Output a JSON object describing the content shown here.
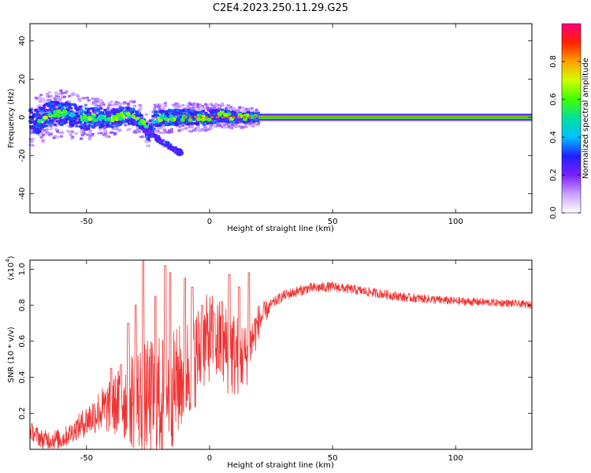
{
  "title": "C2E4.2023.250.11.29.G25",
  "chart_data": [
    {
      "type": "heatmap",
      "xlabel": "Height of straight line (km)",
      "ylabel": "Frequency (Hz)",
      "xlim": [
        -73,
        131
      ],
      "ylim": [
        -50,
        49
      ],
      "xticks": [
        -50,
        0,
        50,
        100
      ],
      "yticks": [
        -40,
        -20,
        0,
        20,
        40
      ],
      "xtick_labels": [
        "-50",
        "0",
        "50",
        "100"
      ],
      "ytick_labels": [
        "-40",
        "-20",
        "0",
        "20",
        "40"
      ],
      "colorbar": {
        "label": "Normalized spectral amplitude",
        "range": [
          0,
          1
        ],
        "ticks": [
          0.0,
          0.2,
          0.4,
          0.6,
          0.8
        ],
        "tick_labels": [
          "0.0",
          "0.2",
          "0.4",
          "0.6",
          "0.8"
        ],
        "colors": [
          "#ffffff",
          "#c8a0ff",
          "#7a20ff",
          "#2020ff",
          "#00c0ff",
          "#00e0a0",
          "#40ff00",
          "#d0ff00",
          "#ffa000",
          "#ff2000",
          "#ff0080"
        ]
      },
      "scatter_band": {
        "x_start": -73,
        "x_end": 20,
        "center_freq": [
          [
            -70,
            -2
          ],
          [
            -65,
            2
          ],
          [
            -60,
            2
          ],
          [
            -55,
            1
          ],
          [
            -50,
            -1
          ],
          [
            -45,
            0
          ],
          [
            -40,
            -1
          ],
          [
            -35,
            1
          ],
          [
            -30,
            0
          ],
          [
            -27,
            -3
          ],
          [
            -25,
            -8
          ],
          [
            -22,
            -1
          ],
          [
            -18,
            0
          ],
          [
            -12,
            0
          ],
          [
            -5,
            0
          ],
          [
            0,
            0
          ],
          [
            5,
            1
          ],
          [
            10,
            0
          ],
          [
            15,
            0
          ],
          [
            20,
            0
          ]
        ],
        "spread_hz": [
          8,
          8,
          6,
          5,
          5,
          4,
          3
        ],
        "offbranch": [
          [
            -28,
            -5
          ],
          [
            -20,
            -12
          ],
          [
            -14,
            -17
          ],
          [
            -11,
            -19
          ]
        ]
      },
      "steady_line": {
        "x_start": 20,
        "x_end": 131,
        "freq": 0,
        "width_hz": 2
      }
    },
    {
      "type": "line",
      "xlabel": "Height of straight line (km)",
      "ylabel": "SNR (10 * v/v)",
      "y_multiplier_label": "(x10",
      "y_multiplier_exp": "4",
      "y_multiplier_close": ")",
      "xlim": [
        -73,
        131
      ],
      "ylim": [
        0,
        1.05
      ],
      "xticks": [
        -50,
        0,
        50,
        100
      ],
      "yticks": [
        0.2,
        0.4,
        0.6,
        0.8,
        1.0
      ],
      "xtick_labels": [
        "-50",
        "0",
        "50",
        "100"
      ],
      "ytick_labels": [
        "0.2",
        "0.4",
        "0.6",
        "0.8",
        "1.0"
      ],
      "color": "#ee3333",
      "series": {
        "name": "SNR",
        "baseline": [
          [
            -73,
            0.1
          ],
          [
            -68,
            0.05
          ],
          [
            -60,
            0.05
          ],
          [
            -55,
            0.1
          ],
          [
            -50,
            0.15
          ],
          [
            -45,
            0.2
          ],
          [
            -40,
            0.22
          ],
          [
            -35,
            0.25
          ],
          [
            -30,
            0.25
          ],
          [
            -25,
            0.25
          ],
          [
            -20,
            0.25
          ],
          [
            -15,
            0.3
          ],
          [
            -10,
            0.4
          ],
          [
            -5,
            0.5
          ],
          [
            0,
            0.6
          ],
          [
            5,
            0.55
          ],
          [
            10,
            0.5
          ],
          [
            15,
            0.5
          ],
          [
            20,
            0.7
          ],
          [
            25,
            0.8
          ],
          [
            30,
            0.85
          ],
          [
            40,
            0.89
          ],
          [
            50,
            0.9
          ],
          [
            60,
            0.88
          ],
          [
            70,
            0.86
          ],
          [
            80,
            0.84
          ],
          [
            90,
            0.83
          ],
          [
            100,
            0.82
          ],
          [
            110,
            0.815
          ],
          [
            120,
            0.81
          ],
          [
            131,
            0.8
          ]
        ],
        "noise": [
          [
            -73,
            0.05
          ],
          [
            -55,
            0.06
          ],
          [
            -40,
            0.15
          ],
          [
            -30,
            0.3
          ],
          [
            -20,
            0.35
          ],
          [
            -10,
            0.3
          ],
          [
            0,
            0.25
          ],
          [
            10,
            0.25
          ],
          [
            20,
            0.1
          ],
          [
            25,
            0.03
          ],
          [
            131,
            0.02
          ]
        ],
        "peaks": [
          [
            -40,
            0.45
          ],
          [
            -36,
            0.47
          ],
          [
            -33,
            0.7
          ],
          [
            -30,
            0.8
          ],
          [
            -27,
            1.05
          ],
          [
            -22,
            0.85
          ],
          [
            -18,
            1.02
          ],
          [
            -16,
            0.98
          ],
          [
            -10,
            0.95
          ],
          [
            -7,
            0.9
          ],
          [
            -3,
            0.8
          ],
          [
            2,
            0.75
          ],
          [
            5,
            0.82
          ],
          [
            8,
            0.97
          ],
          [
            12,
            0.9
          ],
          [
            16,
            0.98
          ]
        ]
      }
    }
  ]
}
